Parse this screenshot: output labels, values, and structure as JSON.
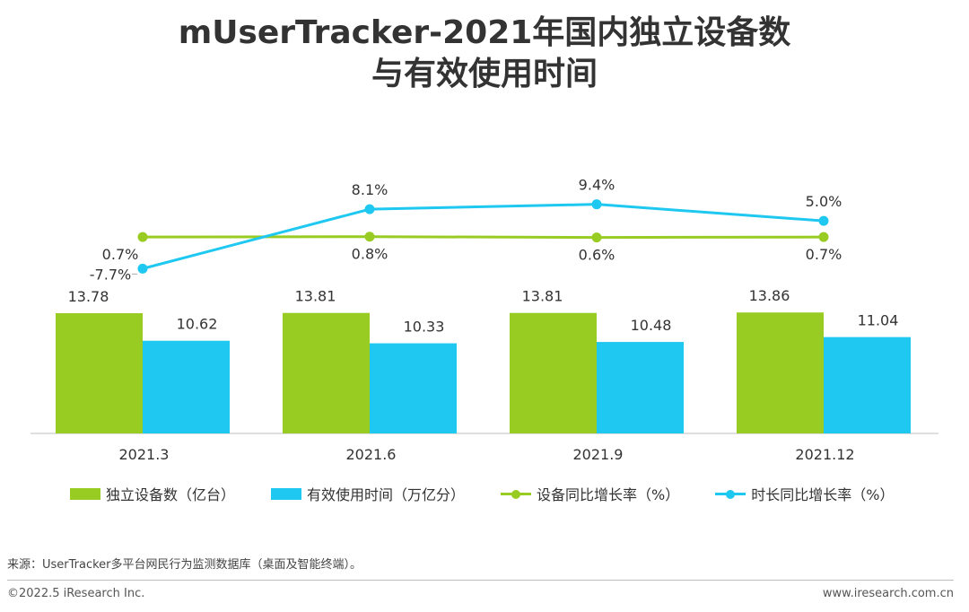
{
  "title": {
    "line1": "mUserTracker-2021年国内独立设备数",
    "line2": "与有效使用时间"
  },
  "chart_data": {
    "type": "bar",
    "categories": [
      "2021.3",
      "2021.6",
      "2021.9",
      "2021.12"
    ],
    "series": [
      {
        "name": "独立设备数（亿台）",
        "type": "bar",
        "values": [
          13.78,
          13.81,
          13.81,
          13.86
        ],
        "labels": [
          "13.78",
          "13.81",
          "13.81",
          "13.86"
        ],
        "color": "#99CC22"
      },
      {
        "name": "有效使用时间（万亿分）",
        "type": "bar",
        "values": [
          10.62,
          10.33,
          10.48,
          11.04
        ],
        "labels": [
          "10.62",
          "10.33",
          "10.48",
          "11.04"
        ],
        "color": "#1EC8F0"
      },
      {
        "name": "设备同比增长率（%）",
        "type": "line",
        "values": [
          0.7,
          0.8,
          0.6,
          0.7
        ],
        "labels": [
          "0.7%",
          "0.8%",
          "0.6%",
          "0.7%"
        ],
        "color": "#99CC22"
      },
      {
        "name": "时长同比增长率（%）",
        "type": "line",
        "values": [
          -7.7,
          8.1,
          9.4,
          5.0
        ],
        "labels": [
          "-7.7%",
          "8.1%",
          "9.4%",
          "5.0%"
        ],
        "color": "#1EC8F0"
      }
    ],
    "bar_axis_range": [
      0,
      15
    ],
    "line_axis_range": [
      -15,
      16
    ],
    "grid": false,
    "legend_position": "bottom"
  },
  "footer": {
    "source": "来源：UserTracker多平台网民行为监测数据库（桌面及智能终端）。",
    "copyright": "©2022.5 iResearch Inc.",
    "website": "www.iresearch.com.cn"
  }
}
